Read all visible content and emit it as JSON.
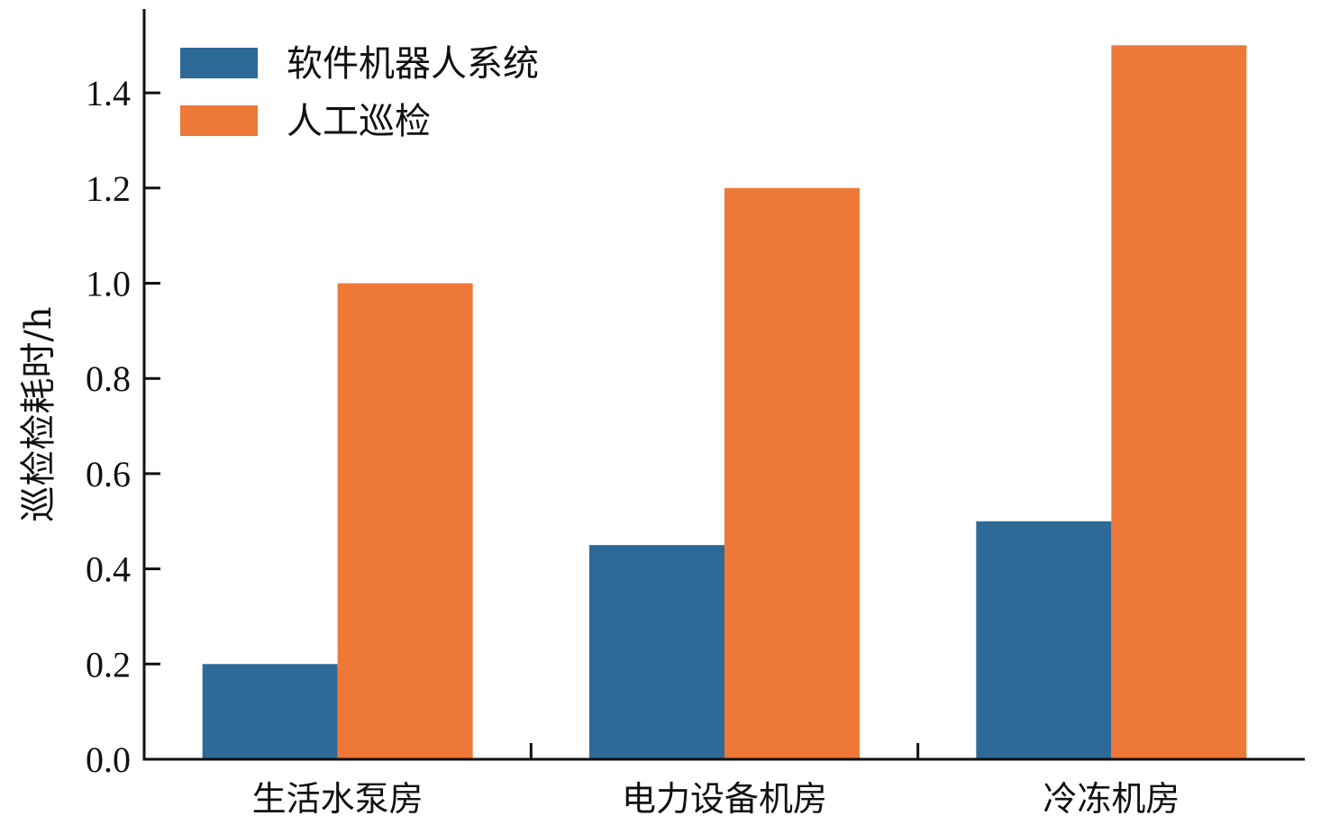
{
  "chart_data": {
    "type": "bar",
    "categories": [
      "生活水泵房",
      "电力设备机房",
      "冷冻机房"
    ],
    "series": [
      {
        "name": "软件机器人系统",
        "values": [
          0.2,
          0.45,
          0.5
        ],
        "color": "#2e6a97"
      },
      {
        "name": "人工巡检",
        "values": [
          1.0,
          1.2,
          1.5
        ],
        "color": "#ed7838"
      }
    ],
    "title": "",
    "xlabel": "",
    "ylabel": "巡检检耗时/h",
    "ylim": [
      0,
      1.57
    ],
    "yticks": [
      0.0,
      0.2,
      0.4,
      0.6,
      0.8,
      1.0,
      1.2,
      1.4
    ],
    "ytick_labels": [
      "0.0",
      "0.2",
      "0.4",
      "0.6",
      "0.8",
      "1.0",
      "1.2",
      "1.4"
    ],
    "grid": false,
    "legend_position": "top-left"
  }
}
